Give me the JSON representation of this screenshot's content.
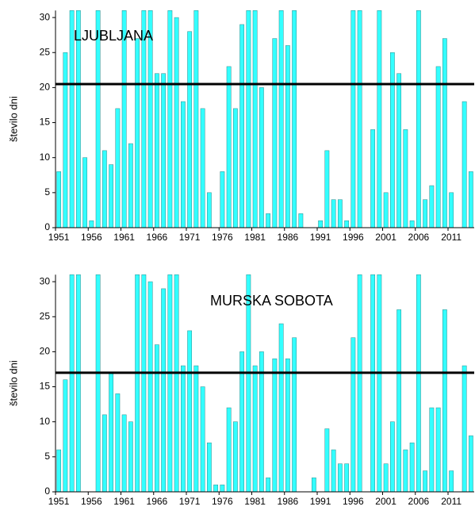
{
  "chart_data": [
    {
      "type": "bar",
      "annotation": "LJUBLJANA",
      "y_label": "število dni",
      "color": "#33ffff",
      "reference_line": 20.5,
      "ylim": [
        0,
        31
      ],
      "yticks": [
        0,
        5,
        10,
        15,
        20,
        25,
        30
      ],
      "categories": [
        "1951",
        null,
        null,
        null,
        null,
        "1956",
        null,
        null,
        null,
        null,
        "1961",
        null,
        null,
        null,
        null,
        "1966",
        null,
        null,
        null,
        null,
        "1971",
        null,
        null,
        null,
        null,
        "1976",
        null,
        null,
        null,
        null,
        "1981",
        null,
        null,
        null,
        null,
        "1986",
        null,
        null,
        null,
        null,
        "1991",
        null,
        null,
        null,
        null,
        "1996",
        null,
        null,
        null,
        null,
        "2001",
        null,
        null,
        null,
        null,
        "2006",
        null,
        null,
        null,
        null,
        "2011",
        null,
        null,
        null
      ],
      "values": [
        8,
        25,
        31,
        31,
        10,
        1,
        31,
        11,
        9,
        17,
        31,
        12,
        27,
        31,
        31,
        22,
        22,
        31,
        30,
        18,
        28,
        31,
        17,
        5,
        0,
        8,
        23,
        17,
        29,
        31,
        31,
        20,
        2,
        27,
        31,
        26,
        31,
        2,
        0,
        0,
        1,
        11,
        4,
        4,
        1,
        31,
        31,
        0,
        14,
        31,
        5,
        25,
        22,
        14,
        1,
        31,
        4,
        6,
        23,
        27,
        5,
        0,
        18,
        8
      ]
    },
    {
      "type": "bar",
      "annotation": "MURSKA SOBOTA",
      "y_label": "število dni",
      "color": "#33ffff",
      "reference_line": 17,
      "ylim": [
        0,
        31
      ],
      "yticks": [
        0,
        5,
        10,
        15,
        20,
        25,
        30
      ],
      "categories": [
        "1951",
        null,
        null,
        null,
        null,
        "1956",
        null,
        null,
        null,
        null,
        "1961",
        null,
        null,
        null,
        null,
        "1966",
        null,
        null,
        null,
        null,
        "1971",
        null,
        null,
        null,
        null,
        "1976",
        null,
        null,
        null,
        null,
        "1981",
        null,
        null,
        null,
        null,
        "1986",
        null,
        null,
        null,
        null,
        "1991",
        null,
        null,
        null,
        null,
        "1996",
        null,
        null,
        null,
        null,
        "2001",
        null,
        null,
        null,
        null,
        "2006",
        null,
        null,
        null,
        null,
        "2011",
        null,
        null,
        null
      ],
      "values": [
        6,
        16,
        31,
        31,
        0,
        0,
        31,
        11,
        17,
        14,
        11,
        10,
        31,
        31,
        30,
        21,
        29,
        31,
        31,
        18,
        23,
        18,
        15,
        7,
        1,
        1,
        12,
        10,
        20,
        31,
        18,
        20,
        2,
        19,
        24,
        19,
        22,
        0,
        0,
        2,
        0,
        9,
        6,
        4,
        4,
        22,
        31,
        0,
        31,
        31,
        4,
        10,
        26,
        6,
        7,
        31,
        3,
        12,
        12,
        26,
        3,
        0,
        18,
        8
      ]
    }
  ]
}
